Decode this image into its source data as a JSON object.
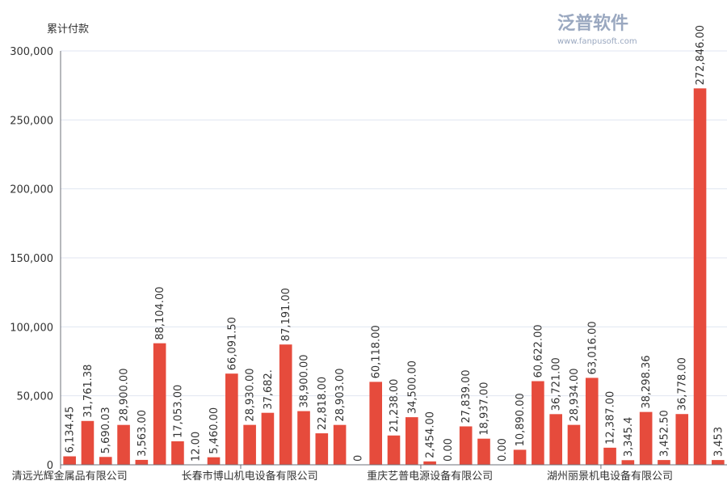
{
  "chart_data": {
    "type": "bar",
    "title": "",
    "ylabel": "累计付款",
    "xlabel": "",
    "ylim": [
      0,
      300000
    ],
    "yticks": [
      "0",
      "50,000",
      "100,000",
      "150,000",
      "200,000",
      "250,000",
      "300,000"
    ],
    "grid": true,
    "bar_color": "#e64b3c",
    "category_labels_shown": [
      {
        "index": 0,
        "label": "清远光辉金属品有限公司"
      },
      {
        "index": 10,
        "label": "长春市博山机电设备有限公司"
      },
      {
        "index": 20,
        "label": "重庆艺普电源设备有限公司"
      },
      {
        "index": 30,
        "label": "湖州丽景机电设备有限公司"
      }
    ],
    "values": [
      6134.45,
      31761.38,
      5690.03,
      28900,
      3563,
      88104,
      17053,
      12,
      5460,
      66091.5,
      28930,
      37682,
      87191,
      38900,
      22818,
      28903,
      0,
      60118,
      21238,
      34500,
      2454,
      0,
      27839,
      18937,
      0,
      10890,
      60622,
      36721,
      28934,
      63016,
      12387,
      3345.4,
      38298.36,
      3452.5,
      36778,
      272846,
      3453
    ],
    "data_labels": [
      "6,134.45",
      "31,761.38",
      "5,690.03",
      "28,900.00",
      "3,563.00",
      "88,104.00",
      "17,053.00",
      "12.00",
      "5,460.00",
      "66,091.50",
      "28,930.00",
      "37,682.",
      "87,191.00",
      "38,900.00",
      "22,818.00",
      "28,903.00",
      "0",
      "60,118.00",
      "21,238.00",
      "34,500.00",
      "2,454.00",
      "0.00",
      "27,839.00",
      "18,937.00",
      "0.00",
      "10,890.00",
      "60,622.00",
      "36,721.00",
      "28,934.00",
      "63,016.00",
      "12,387.00",
      "3,345.4",
      "38,298.36",
      "3,452.50",
      "36,778.00",
      "272,846.00",
      "3,453"
    ]
  },
  "watermark": {
    "text": "泛普软件",
    "url_text": "www.fanpusoft.com"
  }
}
